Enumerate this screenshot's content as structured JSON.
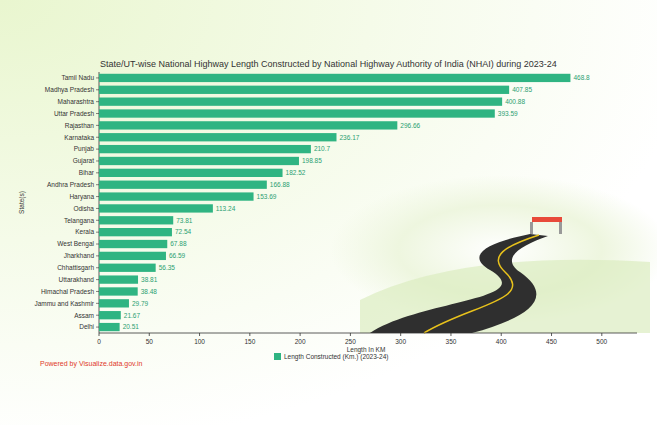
{
  "chart_data": {
    "type": "bar",
    "title": "State/UT-wise National Highway Length Constructed by National Highway Authority of India (NHAI) during 2023-24",
    "x_label": "Length In KM",
    "y_label": "State(s)",
    "source": "Powered by Visualize.data.gov.in",
    "orientation": "horizontal",
    "data_labels": true,
    "grid": false,
    "legend": "bottom",
    "categories": [
      "Tamil Nadu",
      "Madhya Pradesh",
      "Maharashtra",
      "Uttar Pradesh",
      "Rajasthan",
      "Karnataka",
      "Punjab",
      "Gujarat",
      "Bihar",
      "Andhra Pradesh",
      "Haryana",
      "Odisha",
      "Telangana",
      "Kerala",
      "West Bengal",
      "Jharkhand",
      "Chhattisgarh",
      "Uttarakhand",
      "Himachal Pradesh",
      "Jammu and Kashmir",
      "Assam",
      "Delhi"
    ],
    "series": [
      {
        "name": "Length Constructed (Km.) (2023-24)",
        "color": "#2fb482",
        "values": [
          468.8,
          407.85,
          400.88,
          393.59,
          296.66,
          236.17,
          210.7,
          198.85,
          182.52,
          166.88,
          153.69,
          113.24,
          73.81,
          72.54,
          67.88,
          66.59,
          56.35,
          38.81,
          38.48,
          29.79,
          21.67,
          20.51
        ]
      }
    ],
    "xlim": [
      0,
      535
    ],
    "xticks": [
      0,
      50,
      100,
      150,
      200,
      250,
      300,
      350,
      400,
      450,
      500
    ]
  }
}
